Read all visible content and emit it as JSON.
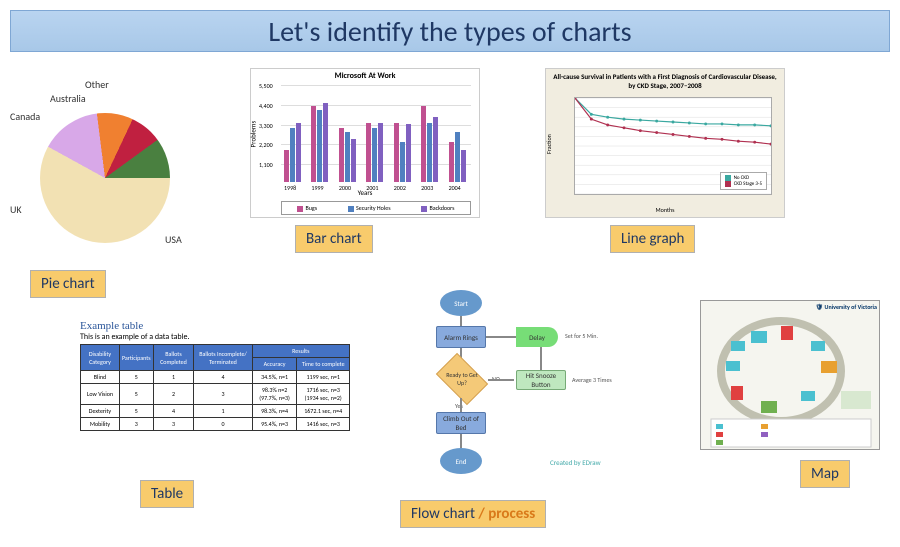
{
  "title": "Let's identify the types of charts",
  "labels": {
    "pie": "Pie chart",
    "bar": "Bar chart",
    "line": "Line graph",
    "table": "Table",
    "flow": "Flow chart",
    "flow_suffix": " / process",
    "map": "Map"
  },
  "pie_chart": {
    "type": "pie",
    "slices": [
      {
        "label": "USA",
        "pct": 58,
        "color": "#f2e1b3"
      },
      {
        "label": "UK",
        "pct": 15,
        "color": "#d8a8e8"
      },
      {
        "label": "Canada",
        "pct": 9,
        "color": "#f08030"
      },
      {
        "label": "Australia",
        "pct": 8,
        "color": "#c02040"
      },
      {
        "label": "Other",
        "pct": 10,
        "color": "#4a8040"
      }
    ],
    "pie_labels": {
      "usa": "USA",
      "uk": "UK",
      "canada": "Canada",
      "australia": "Australia",
      "other": "Other"
    }
  },
  "bar_chart": {
    "type": "grouped-bar",
    "title": "Microsoft At Work",
    "ylabel": "Problems",
    "xlabel": "Years",
    "years": [
      "1998",
      "1999",
      "2000",
      "2001",
      "2002",
      "2003",
      "2004"
    ],
    "series": [
      {
        "name": "Bugs",
        "color": "#c05090",
        "values": [
          1800,
          4200,
          3000,
          3300,
          3300,
          4200,
          2200
        ]
      },
      {
        "name": "Security Holes",
        "color": "#5080c0",
        "values": [
          3000,
          4000,
          2800,
          3000,
          2200,
          3300,
          2800
        ]
      },
      {
        "name": "Backdoors",
        "color": "#8060c0",
        "values": [
          3300,
          4400,
          2400,
          3300,
          3200,
          3600,
          1800
        ]
      }
    ],
    "ylim": [
      0,
      5500
    ],
    "yticks": [
      1100,
      2200,
      3300,
      4400,
      5500
    ],
    "ytick_labels": [
      "1,100",
      "2,200",
      "3,300",
      "4,400",
      "5,500"
    ]
  },
  "line_chart": {
    "type": "line",
    "title": "All-cause Survival in Patients with a First Diagnosis of Cardiovascular Disease, by CKD Stage, 2007–2008",
    "ylabel": "Fraction",
    "xlabel": "Months",
    "xlim": [
      0,
      12
    ],
    "ylim": [
      0,
      1
    ],
    "series": [
      {
        "name": "No CKD",
        "color": "#3aa8a0",
        "marker": "circle",
        "x": [
          0,
          1,
          2,
          3,
          4,
          5,
          6,
          7,
          8,
          9,
          10,
          11,
          12
        ],
        "y": [
          1.0,
          0.83,
          0.8,
          0.78,
          0.77,
          0.76,
          0.75,
          0.74,
          0.73,
          0.73,
          0.72,
          0.72,
          0.71
        ]
      },
      {
        "name": "CKD Stage 3-5",
        "color": "#b03050",
        "marker": "circle",
        "x": [
          0,
          1,
          2,
          3,
          4,
          5,
          6,
          7,
          8,
          9,
          10,
          11,
          12
        ],
        "y": [
          1.0,
          0.78,
          0.72,
          0.69,
          0.66,
          0.64,
          0.62,
          0.6,
          0.58,
          0.57,
          0.55,
          0.54,
          0.52
        ]
      }
    ]
  },
  "table": {
    "title": "Example table",
    "subtitle": "This is an example of a data table.",
    "columns": [
      "Disability Category",
      "Participants",
      "Ballots Completed",
      "Ballots Incomplete/ Terminated",
      "Accuracy",
      "Time to complete"
    ],
    "group_header": "Results",
    "rows": [
      [
        "Blind",
        "5",
        "1",
        "4",
        "34.5%, n=1",
        "1199 sec, n=1"
      ],
      [
        "Low Vision",
        "5",
        "2",
        "3",
        "98.3% n=2 (97.7%, n=3)",
        "1716 sec, n=3 (1934 sec, n=2)"
      ],
      [
        "Dexterity",
        "5",
        "4",
        "1",
        "98.3%, n=4",
        "1672.1 sec, n=4"
      ],
      [
        "Mobility",
        "3",
        "3",
        "0",
        "95.4%, n=3",
        "1416 sec, n=3"
      ]
    ]
  },
  "flowchart": {
    "type": "flowchart",
    "nodes": {
      "start": "Start",
      "alarm": "Alarm Rings",
      "delay": "Delay",
      "delay_note": "Set for 5 Min.",
      "decision": "Ready to Get Up?",
      "no": "NO",
      "yes": "Yes",
      "snooze": "Hit Snooze Button",
      "snooze_note": "Average 3 Times",
      "climb": "Climb Out of Bed",
      "end": "End"
    },
    "credit": "Created by EDraw",
    "colors": {
      "terminal": "#6699cc",
      "process": "#88aadd",
      "process2": "#bfe8bf",
      "delay": "#77dd77",
      "decision": "#f4c978"
    }
  },
  "map": {
    "logo_text": "University of Victoria",
    "background": "#f5f5ef",
    "building_colors": [
      "#4ac0d0",
      "#e04040",
      "#70b050",
      "#e8a030",
      "#9060c0"
    ]
  }
}
